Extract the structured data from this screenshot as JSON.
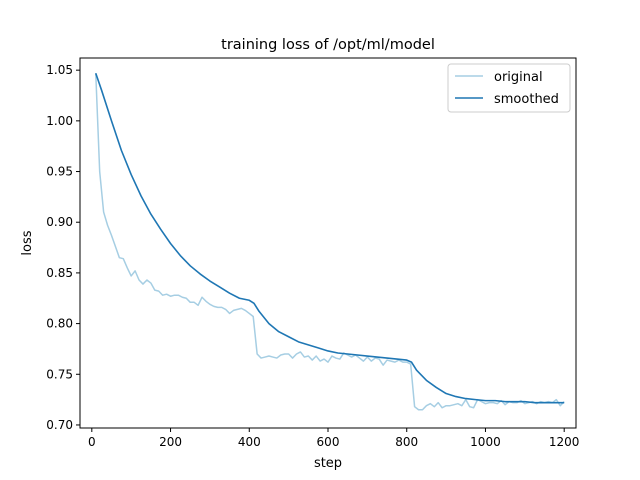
{
  "chart_data": {
    "type": "line",
    "title": "training loss of /opt/ml/model",
    "xlabel": "step",
    "ylabel": "loss",
    "xlim": [
      -30,
      1230
    ],
    "ylim": [
      0.697,
      1.062
    ],
    "xticks": [
      0,
      200,
      400,
      600,
      800,
      1000,
      1200
    ],
    "xtick_labels": [
      "0",
      "200",
      "400",
      "600",
      "800",
      "1000",
      "1200"
    ],
    "yticks": [
      0.7,
      0.75,
      0.8,
      0.85,
      0.9,
      0.95,
      1.0,
      1.05
    ],
    "ytick_labels": [
      "0.70",
      "0.75",
      "0.80",
      "0.85",
      "0.90",
      "0.95",
      "1.00",
      "1.05"
    ],
    "grid": false,
    "legend_position": "top-right",
    "series": [
      {
        "name": "original",
        "color": "#a6cee3",
        "x": [
          10,
          20,
          30,
          40,
          50,
          60,
          70,
          80,
          90,
          100,
          110,
          120,
          130,
          140,
          150,
          160,
          170,
          180,
          190,
          200,
          210,
          220,
          230,
          240,
          250,
          260,
          270,
          280,
          290,
          300,
          310,
          320,
          330,
          340,
          350,
          360,
          370,
          380,
          390,
          400,
          410,
          420,
          430,
          440,
          450,
          460,
          470,
          480,
          490,
          500,
          510,
          520,
          530,
          540,
          550,
          560,
          570,
          580,
          590,
          600,
          610,
          620,
          630,
          640,
          650,
          660,
          670,
          680,
          690,
          700,
          710,
          720,
          730,
          740,
          750,
          760,
          770,
          780,
          790,
          800,
          810,
          820,
          830,
          840,
          850,
          860,
          870,
          880,
          890,
          900,
          910,
          920,
          930,
          940,
          950,
          960,
          970,
          980,
          990,
          1000,
          1010,
          1020,
          1030,
          1040,
          1050,
          1060,
          1070,
          1080,
          1090,
          1100,
          1110,
          1120,
          1130,
          1140,
          1150,
          1160,
          1170,
          1180,
          1190,
          1200
        ],
        "y": [
          1.047,
          0.95,
          0.91,
          0.897,
          0.887,
          0.876,
          0.865,
          0.864,
          0.855,
          0.847,
          0.852,
          0.843,
          0.839,
          0.843,
          0.84,
          0.833,
          0.832,
          0.828,
          0.829,
          0.827,
          0.828,
          0.828,
          0.826,
          0.825,
          0.821,
          0.821,
          0.818,
          0.826,
          0.822,
          0.819,
          0.817,
          0.816,
          0.816,
          0.814,
          0.81,
          0.813,
          0.814,
          0.815,
          0.813,
          0.81,
          0.807,
          0.77,
          0.766,
          0.767,
          0.768,
          0.767,
          0.766,
          0.769,
          0.77,
          0.77,
          0.766,
          0.77,
          0.772,
          0.767,
          0.768,
          0.764,
          0.768,
          0.763,
          0.765,
          0.762,
          0.768,
          0.766,
          0.765,
          0.771,
          0.769,
          0.767,
          0.769,
          0.766,
          0.763,
          0.767,
          0.763,
          0.766,
          0.765,
          0.759,
          0.764,
          0.763,
          0.762,
          0.764,
          0.762,
          0.762,
          0.76,
          0.718,
          0.715,
          0.715,
          0.719,
          0.721,
          0.718,
          0.722,
          0.717,
          0.719,
          0.719,
          0.72,
          0.721,
          0.719,
          0.725,
          0.718,
          0.717,
          0.725,
          0.723,
          0.721,
          0.722,
          0.722,
          0.721,
          0.724,
          0.72,
          0.723,
          0.722,
          0.722,
          0.724,
          0.721,
          0.722,
          0.723,
          0.721,
          0.723,
          0.722,
          0.723,
          0.722,
          0.725,
          0.719,
          0.723
        ]
      },
      {
        "name": "smoothed",
        "color": "#1f77b4",
        "x": [
          10,
          25,
          50,
          75,
          100,
          125,
          150,
          175,
          200,
          225,
          250,
          275,
          300,
          325,
          350,
          375,
          400,
          412,
          425,
          450,
          475,
          500,
          525,
          550,
          575,
          600,
          625,
          650,
          675,
          700,
          725,
          750,
          775,
          800,
          812,
          825,
          850,
          875,
          900,
          925,
          950,
          975,
          1000,
          1025,
          1050,
          1075,
          1100,
          1125,
          1150,
          1175,
          1200
        ],
        "y": [
          1.047,
          1.03,
          1.0,
          0.971,
          0.947,
          0.926,
          0.908,
          0.893,
          0.879,
          0.867,
          0.857,
          0.849,
          0.842,
          0.836,
          0.83,
          0.825,
          0.823,
          0.82,
          0.812,
          0.8,
          0.792,
          0.787,
          0.782,
          0.779,
          0.776,
          0.773,
          0.771,
          0.77,
          0.769,
          0.768,
          0.767,
          0.766,
          0.765,
          0.764,
          0.762,
          0.754,
          0.744,
          0.737,
          0.731,
          0.728,
          0.726,
          0.725,
          0.724,
          0.724,
          0.723,
          0.723,
          0.723,
          0.722,
          0.722,
          0.722,
          0.722
        ]
      }
    ]
  }
}
